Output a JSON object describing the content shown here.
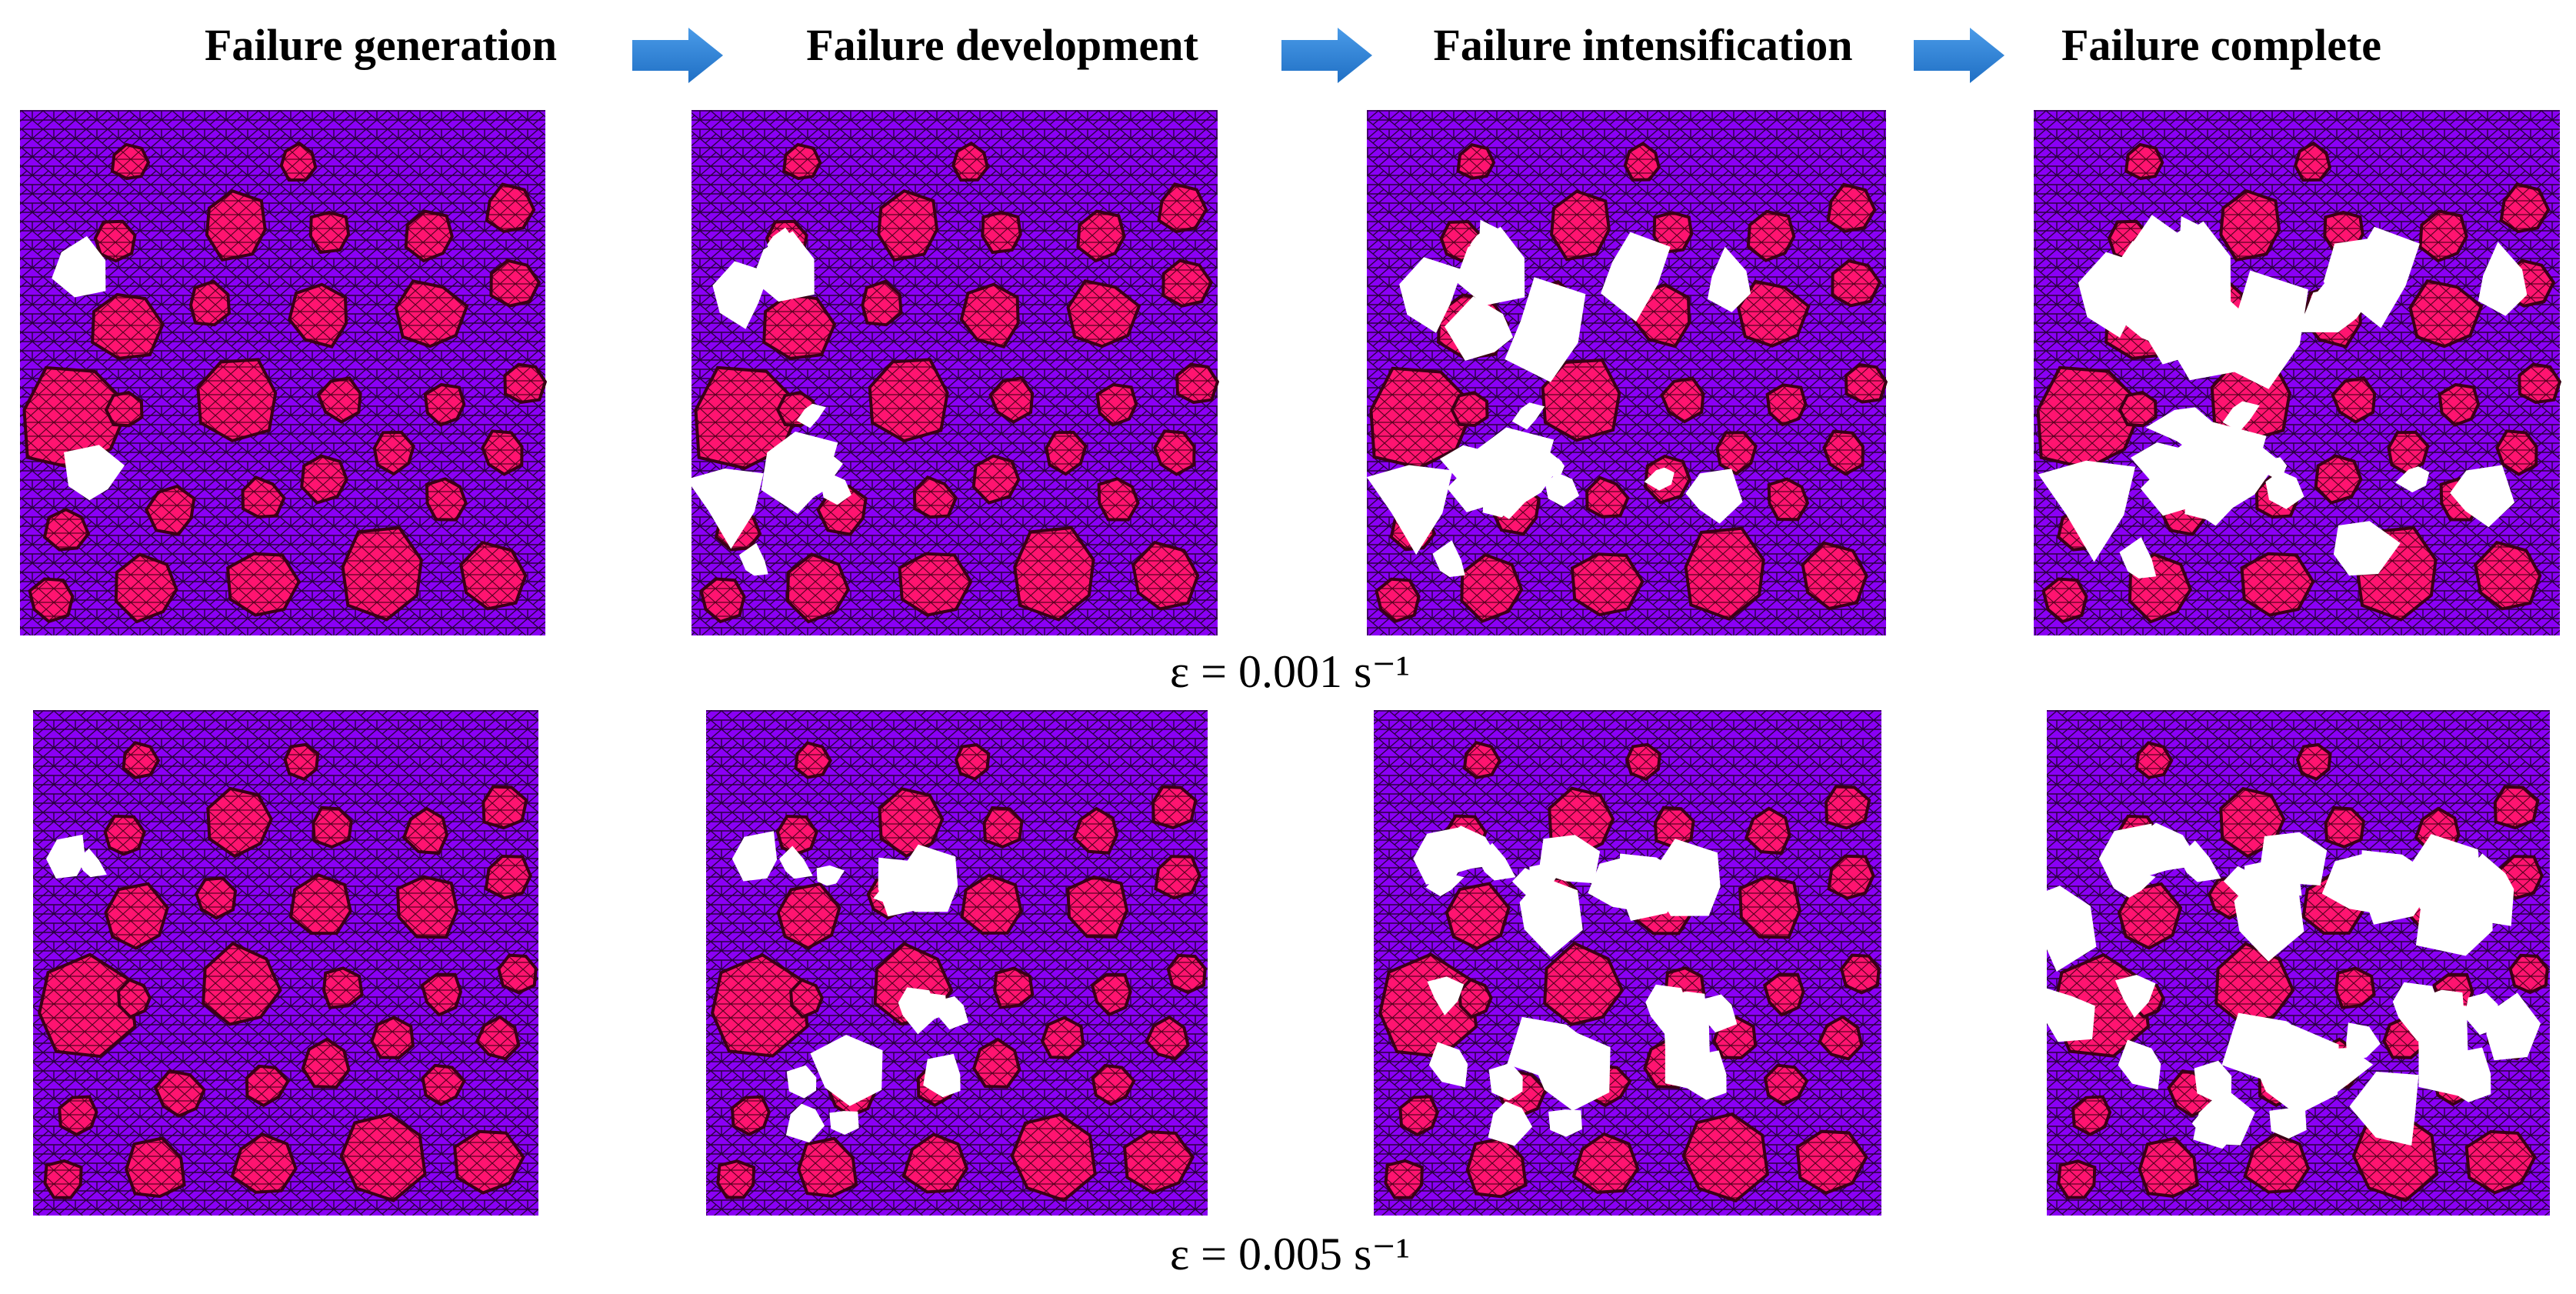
{
  "stages": [
    "Failure generation",
    "Failure development",
    "Failure intensification",
    "Failure complete"
  ],
  "rows": [
    {
      "label": "ε  = 0.001 s⁻¹"
    },
    {
      "label": "ε  = 0.005 s⁻¹"
    }
  ]
}
